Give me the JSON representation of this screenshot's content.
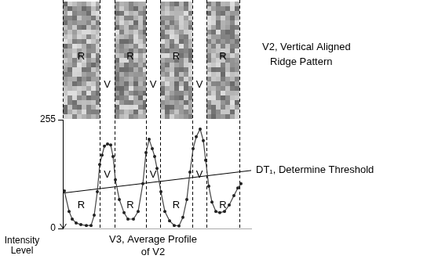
{
  "ridge_pattern": {
    "label": [
      "V2, Vertical Aligned",
      "Ridge Pattern"
    ]
  },
  "chart_data": {
    "type": "line",
    "title": [
      "V3, Average Profile",
      "of V2"
    ],
    "y_label": [
      "Intensity",
      "Level"
    ],
    "x": [
      2,
      8,
      12,
      17,
      23,
      30,
      36,
      40,
      44,
      47,
      50,
      53,
      57,
      61,
      64,
      67,
      72,
      78,
      83,
      90,
      96,
      102,
      106,
      110,
      114,
      117,
      120,
      125,
      130,
      136,
      142,
      148,
      153,
      158,
      162,
      166,
      170,
      175,
      179,
      182,
      186,
      190,
      195,
      200,
      206,
      212,
      218,
      223,
      227
    ],
    "values": [
      88,
      40,
      22,
      13,
      9,
      7,
      7,
      31,
      86,
      150,
      172,
      193,
      198,
      196,
      169,
      114,
      68,
      37,
      22,
      22,
      40,
      105,
      178,
      209,
      187,
      169,
      141,
      86,
      40,
      18,
      7,
      6,
      26,
      68,
      132,
      187,
      215,
      233,
      206,
      160,
      99,
      62,
      40,
      37,
      40,
      55,
      77,
      95,
      105
    ],
    "color": "#444444",
    "marker": "circle",
    "xlim": [
      0,
      240
    ],
    "ylim": [
      0,
      255
    ],
    "yticks": [
      0,
      255
    ],
    "tick_labels": "y",
    "grid": false,
    "threshold": {
      "label": "DT₁, Determine Threshold",
      "x": [
        0,
        240
      ],
      "values": [
        83,
        136
      ]
    },
    "regions": {
      "labels": [
        "R",
        "V",
        "R",
        "V",
        "R",
        "V",
        "R"
      ],
      "boundaries": [
        0,
        47,
        66,
        106,
        124,
        165,
        183,
        225
      ]
    }
  }
}
